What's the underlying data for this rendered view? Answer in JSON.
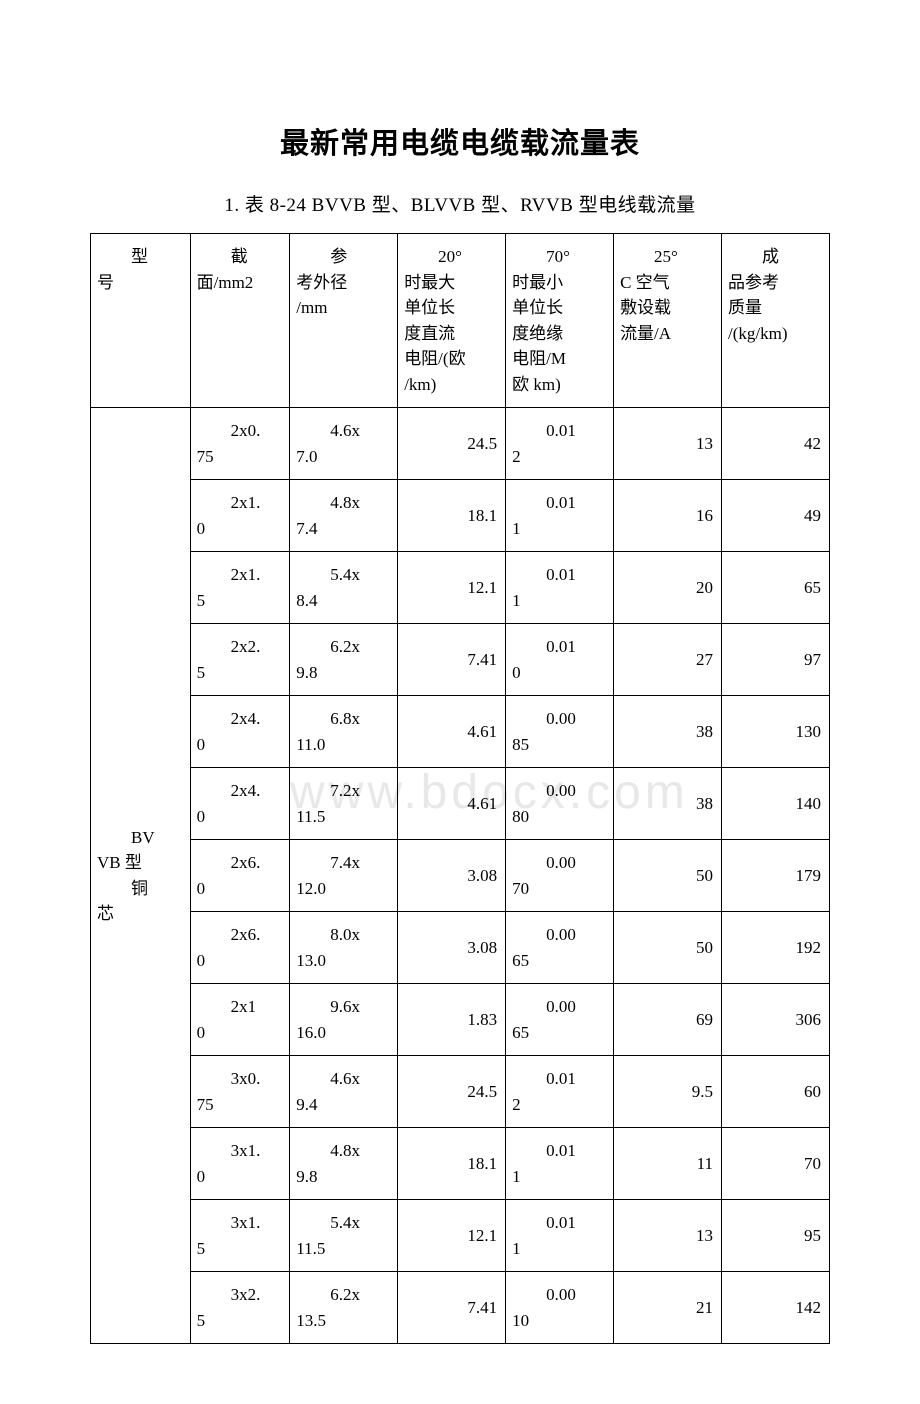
{
  "doc": {
    "title": "最新常用电缆电缆载流量表",
    "subtitle": "1. 表 8-24 BVVB 型、BLVVB 型、RVVB 型电线载流量",
    "watermark": "www.bdocx.com"
  },
  "table": {
    "headers": {
      "type_line1": "　　型",
      "type_line2": "号",
      "section_line1": "　　截",
      "section_line2": "面/mm2",
      "diameter_line1": "　　参",
      "diameter_line2": "考外径",
      "diameter_line3": "/mm",
      "dc_line1": "　　20°",
      "dc_line2": "时最大",
      "dc_line3": "单位长",
      "dc_line4": "度直流",
      "dc_line5": "电阻/(欧",
      "dc_line6": "/km)",
      "ins_line1": "　　70°",
      "ins_line2": "时最小",
      "ins_line3": "单位长",
      "ins_line4": "度绝缘",
      "ins_line5": "电阻/M",
      "ins_line6": "欧 km)",
      "current_line1": "　　25°",
      "current_line2": "C 空气",
      "current_line3": "敷设载",
      "current_line4": "流量/A",
      "weight_line1": "　　成",
      "weight_line2": "品参考",
      "weight_line3": "质量",
      "weight_line4": "/(kg/km)"
    },
    "type_cell_line1": "　　BV",
    "type_cell_line2": "VB 型",
    "type_cell_line3": "　　铜",
    "type_cell_line4": "芯",
    "rows": [
      {
        "section_a": "　　2x0.",
        "section_b": "75",
        "dia_a": "　　4.6x",
        "dia_b": "7.0",
        "dc": "24.5",
        "ins_a": "　　0.01",
        "ins_b": "2",
        "cur": "13",
        "wt": "42"
      },
      {
        "section_a": "　　2x1.",
        "section_b": "0",
        "dia_a": "　　4.8x",
        "dia_b": "7.4",
        "dc": "18.1",
        "ins_a": "　　0.01",
        "ins_b": "1",
        "cur": "16",
        "wt": "49"
      },
      {
        "section_a": "　　2x1.",
        "section_b": "5",
        "dia_a": "　　5.4x",
        "dia_b": "8.4",
        "dc": "12.1",
        "ins_a": "　　0.01",
        "ins_b": "1",
        "cur": "20",
        "wt": "65"
      },
      {
        "section_a": "　　2x2.",
        "section_b": "5",
        "dia_a": "　　6.2x",
        "dia_b": "9.8",
        "dc": "7.41",
        "ins_a": "　　0.01",
        "ins_b": "0",
        "cur": "27",
        "wt": "97"
      },
      {
        "section_a": "　　2x4.",
        "section_b": "0",
        "dia_a": "　　6.8x",
        "dia_b": "11.0",
        "dc": "4.61",
        "ins_a": "　　0.00",
        "ins_b": "85",
        "cur": "38",
        "wt": "130"
      },
      {
        "section_a": "　　2x4.",
        "section_b": "0",
        "dia_a": "　　7.2x",
        "dia_b": "11.5",
        "dc": "4.61",
        "ins_a": "　　0.00",
        "ins_b": "80",
        "cur": "38",
        "wt": "140"
      },
      {
        "section_a": "　　2x6.",
        "section_b": "0",
        "dia_a": "　　7.4x",
        "dia_b": "12.0",
        "dc": "3.08",
        "ins_a": "　　0.00",
        "ins_b": "70",
        "cur": "50",
        "wt": "179"
      },
      {
        "section_a": "　　2x6.",
        "section_b": "0",
        "dia_a": "　　8.0x",
        "dia_b": "13.0",
        "dc": "3.08",
        "ins_a": "　　0.00",
        "ins_b": "65",
        "cur": "50",
        "wt": "192"
      },
      {
        "section_a": "　　2x1",
        "section_b": "0",
        "dia_a": "　　9.6x",
        "dia_b": "16.0",
        "dc": "1.83",
        "ins_a": "　　0.00",
        "ins_b": "65",
        "cur": "69",
        "wt": "306"
      },
      {
        "section_a": "　　3x0.",
        "section_b": "75",
        "dia_a": "　　4.6x",
        "dia_b": "9.4",
        "dc": "24.5",
        "ins_a": "　　0.01",
        "ins_b": "2",
        "cur": "9.5",
        "wt": "60"
      },
      {
        "section_a": "　　3x1.",
        "section_b": "0",
        "dia_a": "　　4.8x",
        "dia_b": "9.8",
        "dc": "18.1",
        "ins_a": "　　0.01",
        "ins_b": "1",
        "cur": "11",
        "wt": "70"
      },
      {
        "section_a": "　　3x1.",
        "section_b": "5",
        "dia_a": "　　5.4x",
        "dia_b": "11.5",
        "dc": "12.1",
        "ins_a": "　　0.01",
        "ins_b": "1",
        "cur": "13",
        "wt": "95"
      },
      {
        "section_a": "　　3x2.",
        "section_b": "5",
        "dia_a": "　　6.2x",
        "dia_b": "13.5",
        "dc": "7.41",
        "ins_a": "　　0.00",
        "ins_b": "10",
        "cur": "21",
        "wt": "142"
      }
    ]
  },
  "style": {
    "background_color": "#ffffff",
    "text_color": "#000000",
    "border_color": "#000000",
    "watermark_color": "#e8e8e8",
    "title_fontsize": 29,
    "subtitle_fontsize": 19,
    "body_fontsize": 17
  }
}
